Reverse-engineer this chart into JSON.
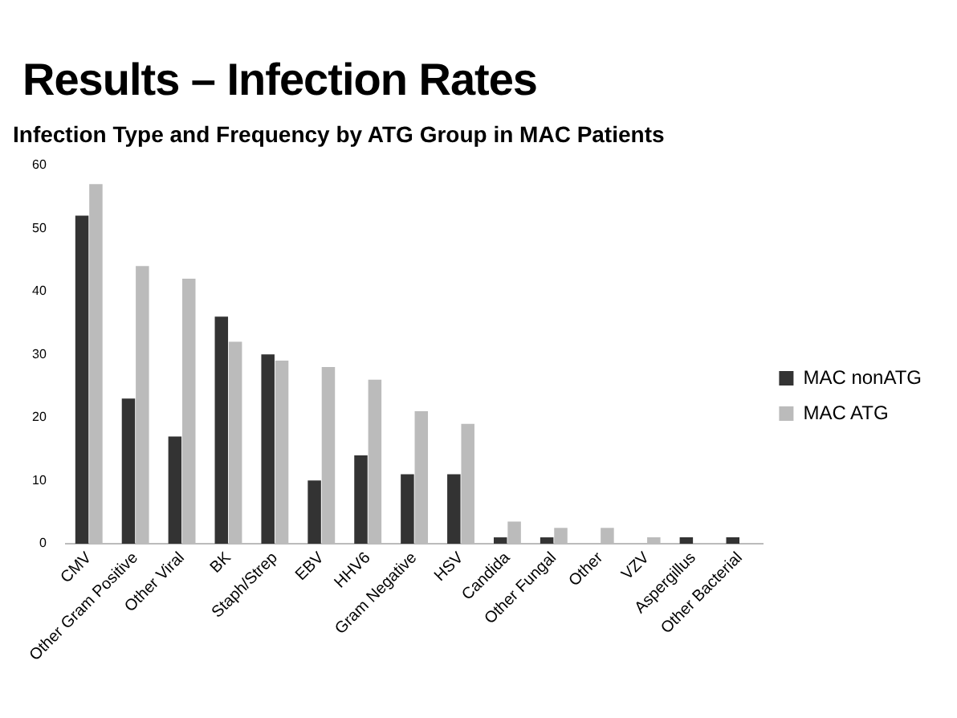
{
  "chart_data": {
    "type": "bar",
    "title": "Infection Type and Frequency by ATG Group in MAC Patients",
    "annotations": [
      "Results – Infection Rates"
    ],
    "categories": [
      "CMV",
      "Other Gram Positive",
      "Other Viral",
      "BK",
      "Staph/Strep",
      "EBV",
      "HHV6",
      "Gram Negative",
      "HSV",
      "Candida",
      "Other Fungal",
      "Other",
      "VZV",
      "Aspergillus",
      "Other Bacterial"
    ],
    "series": [
      {
        "name": "MAC nonATG",
        "color": "#333333",
        "values": [
          52,
          23,
          17,
          36,
          30,
          10,
          14,
          11,
          11,
          1,
          1,
          0,
          0,
          1,
          1
        ]
      },
      {
        "name": "MAC ATG",
        "color": "#bbbbbb",
        "values": [
          57,
          44,
          42,
          32,
          29,
          28,
          26,
          21,
          19,
          3.5,
          2.5,
          2.5,
          1,
          0,
          0
        ]
      }
    ],
    "ylim": [
      0,
      60
    ],
    "yticks": [
      0,
      10,
      20,
      30,
      40,
      50,
      60
    ],
    "grid": false,
    "legend": "right"
  }
}
